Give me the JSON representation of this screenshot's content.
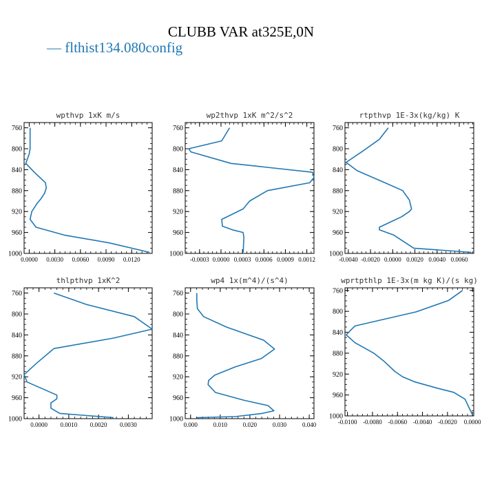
{
  "title": "CLUBB VAR at325E,0N",
  "legend": {
    "label": "— flthist134.080config",
    "color": "#1f77b4"
  },
  "chart_data": [
    {
      "type": "line",
      "title": "wpthvp  1xK m/s",
      "ylim": [
        1000,
        750
      ],
      "yticks": [
        760,
        800,
        840,
        880,
        920,
        960,
        1000
      ],
      "xlim": [
        -0.0006,
        0.0144
      ],
      "xticks": [
        0.0,
        0.003,
        0.006,
        0.009,
        0.012
      ],
      "xtick_labels": [
        "0.0000",
        "0.0030",
        "0.0060",
        "0.0090",
        "0.0120"
      ],
      "series": [
        {
          "x": [
            0.0001,
            0.0001,
            0.0001,
            0.0,
            -0.0004,
            0.0006,
            0.0019,
            0.002,
            0.0018,
            0.0014,
            0.0009,
            0.0003,
            0.0001,
            0.0008,
            0.0041,
            0.0094,
            0.0141
          ],
          "y": [
            760,
            780,
            800,
            810,
            828,
            845,
            865,
            875,
            885,
            895,
            905,
            920,
            935,
            950,
            965,
            980,
            998
          ]
        }
      ]
    },
    {
      "type": "line",
      "title": "wp2thvp  1xK m^2/s^2",
      "ylim": [
        1000,
        750
      ],
      "yticks": [
        760,
        800,
        840,
        880,
        920,
        960,
        1000
      ],
      "xlim": [
        -0.0005,
        0.0013
      ],
      "xticks": [
        -0.0003,
        0.0,
        0.0003,
        0.0006,
        0.0009,
        0.0012
      ],
      "xtick_labels": [
        "-0.0003",
        "0.0000",
        "0.0003",
        "0.0006",
        "0.0009",
        "0.0012"
      ],
      "series": [
        {
          "x": [
            0.00012,
            1e-05,
            -0.00045,
            -0.00042,
            0.00014,
            0.00128,
            0.0013,
            0.00124,
            0.00065,
            0.0004,
            0.00031,
            1e-05,
            2e-05,
            0.00016,
            0.00031,
            0.00032,
            0.00031
          ],
          "y": [
            760,
            785,
            800,
            806,
            828,
            845,
            855,
            865,
            880,
            900,
            915,
            935,
            948,
            955,
            960,
            970,
            998
          ]
        }
      ]
    },
    {
      "type": "line",
      "title": "rtpthvp  1E-3x(kg/kg) K",
      "ylim": [
        1000,
        750
      ],
      "yticks": [
        760,
        800,
        840,
        880,
        920,
        960,
        1000
      ],
      "xlim": [
        -0.0043,
        0.0073
      ],
      "xticks": [
        -0.004,
        -0.002,
        0.0,
        0.002,
        0.004,
        0.006
      ],
      "xtick_labels": [
        "-0.0040",
        "-0.0020",
        "0.0000",
        "0.0020",
        "0.0040",
        "0.0060"
      ],
      "series": [
        {
          "x": [
            -0.0004,
            -0.0012,
            -0.0028,
            -0.0042,
            -0.0032,
            -0.0007,
            0.0009,
            0.0015,
            0.0017,
            0.0015,
            0.0008,
            -0.0002,
            -0.0012,
            -0.0012,
            0.0001,
            0.0019,
            0.0071
          ],
          "y": [
            760,
            782,
            806,
            826,
            842,
            865,
            880,
            898,
            915,
            920,
            930,
            940,
            950,
            955,
            965,
            990,
            998
          ]
        }
      ]
    },
    {
      "type": "line",
      "title": "thlpthvp  1xK^2",
      "ylim": [
        1000,
        750
      ],
      "yticks": [
        760,
        800,
        840,
        880,
        920,
        960,
        1000
      ],
      "xlim": [
        -0.0005,
        0.0038
      ],
      "xticks": [
        0.0,
        0.001,
        0.002,
        0.003
      ],
      "xtick_labels": [
        "0.0000",
        "0.0010",
        "0.0020",
        "0.0030"
      ],
      "series": [
        {
          "x": [
            0.0005,
            0.0016,
            0.0032,
            0.0038,
            0.0025,
            0.0005,
            -0.0001,
            -0.0005,
            -0.0004,
            0.0002,
            0.0006,
            0.0006,
            0.0004,
            0.0004,
            0.0007,
            0.0025
          ],
          "y": [
            760,
            782,
            805,
            829,
            846,
            866,
            895,
            916,
            930,
            945,
            955,
            962,
            970,
            980,
            990,
            998
          ]
        }
      ]
    },
    {
      "type": "line",
      "title": "wp4  1x(m^4)/(s^4)",
      "ylim": [
        1000,
        750
      ],
      "yticks": [
        760,
        800,
        840,
        880,
        920,
        960,
        1000
      ],
      "xlim": [
        -0.0018,
        0.0416
      ],
      "xticks": [
        0.0,
        0.01,
        0.02,
        0.03,
        0.04
      ],
      "xtick_labels": [
        "0.000",
        "0.010",
        "0.020",
        "0.030",
        "0.040"
      ],
      "series": [
        {
          "x": [
            0.0021,
            0.0021,
            0.0023,
            0.0044,
            0.0121,
            0.0246,
            0.0283,
            0.0239,
            0.0151,
            0.0081,
            0.0061,
            0.0059,
            0.0084,
            0.0181,
            0.0261,
            0.0281,
            0.0241,
            0.0151,
            0.0021
          ],
          "y": [
            760,
            775,
            790,
            805,
            825,
            850,
            867,
            885,
            901,
            917,
            927,
            935,
            950,
            965,
            975,
            985,
            990,
            996,
            998
          ]
        }
      ]
    },
    {
      "type": "line",
      "title": "wprtpthlp  1E-3x(m kg K)/(s kg)",
      "ylim": [
        1000,
        755
      ],
      "yticks": [
        760,
        800,
        840,
        880,
        920,
        960,
        1000
      ],
      "xlim": [
        -0.0102,
        0.0001
      ],
      "xticks": [
        -0.01,
        -0.008,
        -0.006,
        -0.004,
        -0.002,
        0.0
      ],
      "xtick_labels": [
        "-0.0100",
        "-0.0080",
        "-0.0060",
        "-0.0040",
        "-0.0020",
        "0.0000"
      ],
      "series": [
        {
          "x": [
            -0.0008,
            -0.0019,
            -0.0045,
            -0.0094,
            -0.0097,
            -0.0099,
            -0.0101,
            -0.0094,
            -0.0079,
            -0.0071,
            -0.0062,
            -0.0056,
            -0.0046,
            -0.0028,
            -0.0015,
            -0.0006,
            0.0
          ],
          "y": [
            760,
            779,
            801,
            828,
            835,
            840,
            845,
            860,
            880,
            895,
            915,
            925,
            935,
            947,
            955,
            968,
            998
          ]
        }
      ]
    }
  ]
}
